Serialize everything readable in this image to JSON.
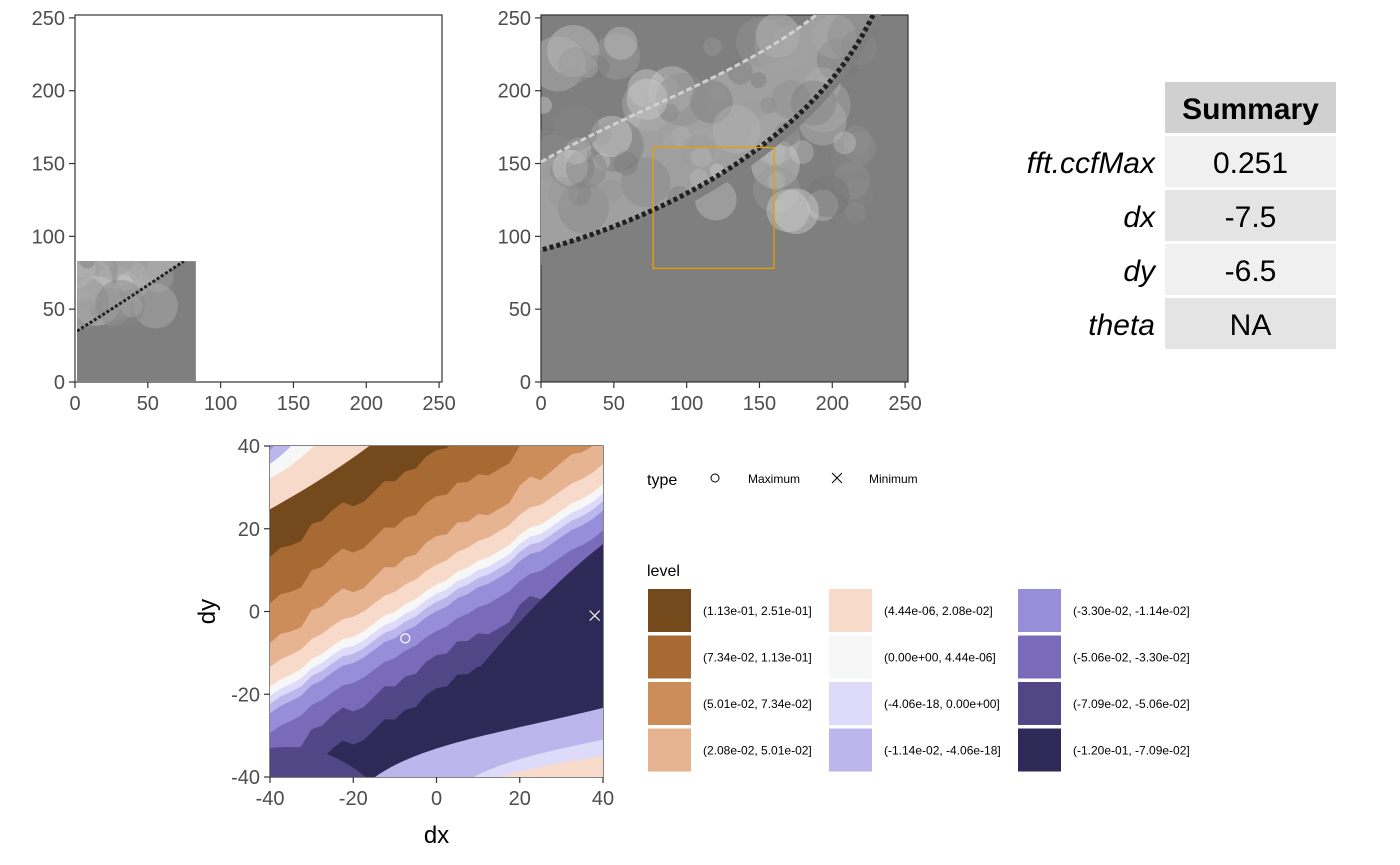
{
  "chart_data": [
    {
      "panel": "reference-patch",
      "type": "heatmap",
      "xlim": [
        0,
        252
      ],
      "ylim": [
        0,
        252
      ],
      "x_ticks": [
        0,
        50,
        100,
        150,
        200,
        250
      ],
      "y_ticks": [
        0,
        50,
        100,
        150,
        200,
        250
      ],
      "filled_region": {
        "x": [
          0,
          83
        ],
        "y": [
          0,
          83
        ]
      },
      "colors": {
        "fill": "#7f7f7f",
        "light": "#b8b8b8",
        "dark": "#202020"
      }
    },
    {
      "panel": "target-scan",
      "type": "heatmap",
      "xlim": [
        0,
        252
      ],
      "ylim": [
        0,
        252
      ],
      "x_ticks": [
        0,
        50,
        100,
        150,
        200,
        250
      ],
      "y_ticks": [
        0,
        50,
        100,
        150,
        200,
        250
      ],
      "highlight_box": {
        "x": [
          77,
          160
        ],
        "y": [
          78,
          161
        ],
        "color": "#e69f00"
      },
      "colors": {
        "fill": "#7f7f7f",
        "light": "#b8b8b8",
        "dark": "#202020"
      }
    },
    {
      "panel": "cross-correlation",
      "type": "heatmap",
      "xlabel": "dx",
      "ylabel": "dy",
      "xlim": [
        -40,
        40
      ],
      "ylim": [
        -40,
        40
      ],
      "x_ticks": [
        -40,
        -20,
        0,
        20,
        40
      ],
      "y_ticks": [
        -40,
        -20,
        0,
        20,
        40
      ],
      "points": [
        {
          "type": "Maximum",
          "x": -7.5,
          "y": -6.5
        },
        {
          "type": "Minimum",
          "x": 38,
          "y": -1
        }
      ],
      "legend_type_title": "type",
      "legend_type_entries": [
        "Maximum",
        "Minimum"
      ],
      "legend_level_title": "level",
      "levels": [
        {
          "label": "(1.13e-01, 2.51e-01]",
          "color": "#74491c"
        },
        {
          "label": "(7.34e-02, 1.13e-01]",
          "color": "#a66a32"
        },
        {
          "label": "(5.01e-02, 7.34e-02]",
          "color": "#cc8d5b"
        },
        {
          "label": "(2.08e-02, 5.01e-02]",
          "color": "#e7b491"
        },
        {
          "label": "(4.44e-06, 2.08e-02]",
          "color": "#f7dac9"
        },
        {
          "label": "(0.00e+00, 4.44e-06]",
          "color": "#f7f7f7"
        },
        {
          "label": "(-4.06e-18, 0.00e+00]",
          "color": "#dedafa"
        },
        {
          "label": "(-1.14e-02, -4.06e-18]",
          "color": "#bdb6ed"
        },
        {
          "label": "(-3.30e-02, -1.14e-02]",
          "color": "#978ed9"
        },
        {
          "label": "(-5.06e-02, -3.30e-02]",
          "color": "#7a6bba"
        },
        {
          "label": "(-7.09e-02, -5.06e-02]",
          "color": "#514686"
        },
        {
          "label": "(-1.20e-01, -7.09e-02]",
          "color": "#2f2957"
        }
      ]
    }
  ],
  "summary_table": {
    "header": "Summary",
    "rows": [
      {
        "label": "fft.ccfMax",
        "value": "0.251"
      },
      {
        "label": "dx",
        "value": "-7.5"
      },
      {
        "label": "dy",
        "value": "-6.5"
      },
      {
        "label": "theta",
        "value": "NA"
      }
    ],
    "colors": {
      "header_bg": "#d0d0d0",
      "row_bg_odd": "#f0f0f0",
      "row_bg_even": "#e4e4e4"
    }
  }
}
